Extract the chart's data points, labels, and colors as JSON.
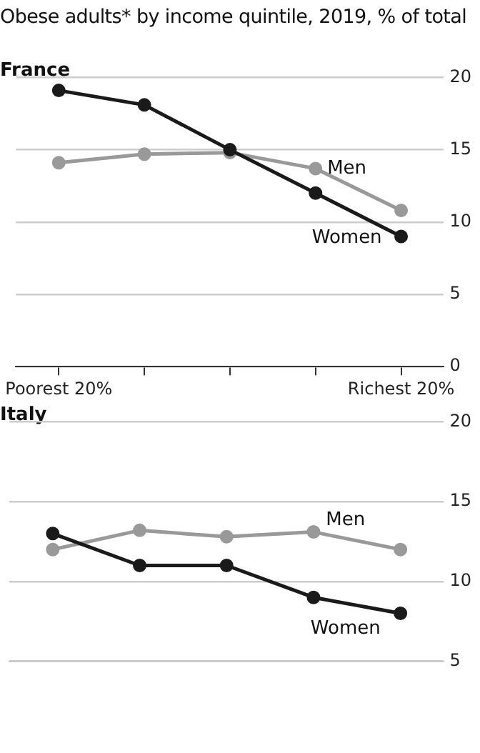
{
  "chart_data": [
    {
      "type": "line",
      "title": "Obese adults* by income quintile, 2019, % of total",
      "subtitle": "France",
      "categories": [
        "Poorest 20%",
        null,
        null,
        null,
        "Richest 20%"
      ],
      "series": [
        {
          "name": "Women",
          "color": "#1a1a1a",
          "values": [
            19.1,
            18.1,
            15.0,
            12.0,
            9.0
          ]
        },
        {
          "name": "Men",
          "color": "#999999",
          "values": [
            14.1,
            14.7,
            14.8,
            13.7,
            10.8
          ]
        }
      ],
      "ylim": [
        0,
        20
      ],
      "yticks": [
        0,
        5,
        10,
        15,
        20
      ],
      "grid": "y",
      "marker": "circle",
      "legend": false
    },
    {
      "type": "line",
      "subtitle": "Italy",
      "categories": [
        null,
        null,
        null,
        null,
        null
      ],
      "series": [
        {
          "name": "Women",
          "color": "#1a1a1a",
          "values": [
            13.0,
            11.0,
            11.0,
            9.0,
            8.0
          ]
        },
        {
          "name": "Men",
          "color": "#999999",
          "values": [
            12.0,
            13.2,
            12.8,
            13.1,
            12.0
          ]
        }
      ],
      "ylim": [
        5,
        20
      ],
      "yticks": [
        5,
        10,
        15,
        20
      ],
      "grid": "y",
      "marker": "circle",
      "legend": false,
      "tick_labels": "y"
    }
  ]
}
